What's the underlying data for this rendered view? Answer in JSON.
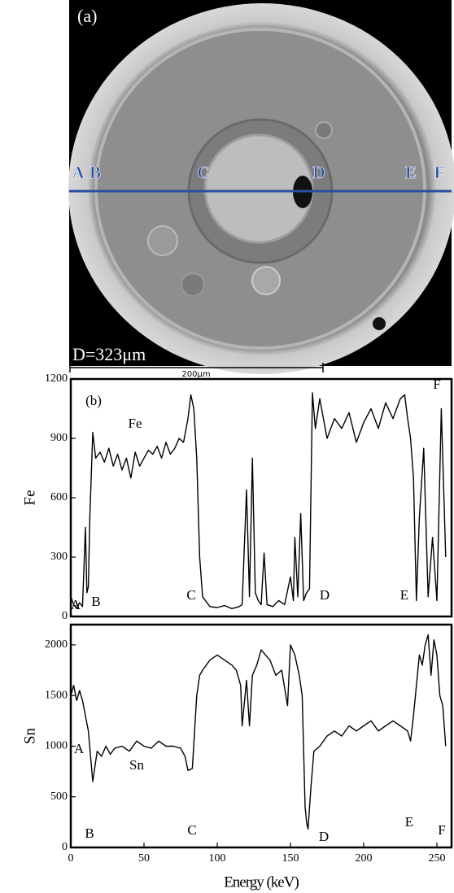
{
  "image": {
    "panel": "(a)",
    "diameter": "D=323μm",
    "scale_bar": "200μm",
    "line_labels": [
      "A",
      "B",
      "C",
      "D",
      "E",
      "F"
    ]
  },
  "chart_data": [
    {
      "type": "line",
      "ylabel": "Fe",
      "annotations": [
        "(b)",
        "A",
        "B",
        "C",
        "D",
        "E",
        "F"
      ],
      "xlim": [
        0,
        260
      ],
      "ylim": [
        0,
        1200
      ],
      "yticks": [
        0,
        300,
        600,
        900,
        1200
      ],
      "x": [
        0,
        2,
        4,
        6,
        8,
        10,
        11,
        12,
        13,
        15,
        17,
        20,
        23,
        26,
        29,
        32,
        35,
        38,
        41,
        44,
        47,
        50,
        53,
        56,
        59,
        62,
        65,
        68,
        71,
        74,
        77,
        80,
        82,
        84,
        86,
        88,
        90,
        95,
        100,
        105,
        110,
        115,
        117,
        120,
        122,
        124,
        126,
        128,
        130,
        132,
        134,
        138,
        142,
        146,
        150,
        152,
        153,
        155,
        157,
        159,
        161,
        163,
        165,
        167,
        170,
        175,
        180,
        185,
        190,
        195,
        200,
        205,
        210,
        215,
        220,
        225,
        228,
        230,
        232,
        234,
        236,
        238,
        241,
        244,
        247,
        250,
        253,
        256
      ],
      "series": [
        {
          "name": "Fe",
          "color": "#000000",
          "values": [
            100,
            60,
            40,
            70,
            50,
            450,
            120,
            150,
            500,
            930,
            800,
            830,
            780,
            850,
            760,
            820,
            740,
            800,
            700,
            830,
            760,
            800,
            840,
            820,
            860,
            800,
            880,
            820,
            850,
            900,
            880,
            1000,
            1120,
            1050,
            800,
            300,
            100,
            50,
            45,
            55,
            40,
            50,
            60,
            640,
            100,
            800,
            120,
            80,
            60,
            320,
            60,
            50,
            80,
            60,
            200,
            80,
            400,
            100,
            520,
            80,
            120,
            140,
            1130,
            950,
            1100,
            900,
            1000,
            950,
            1030,
            880,
            980,
            1050,
            950,
            1080,
            1000,
            1100,
            1120,
            1000,
            900,
            700,
            80,
            500,
            850,
            100,
            400,
            80,
            1050,
            300
          ]
        }
      ]
    },
    {
      "type": "line",
      "ylabel": "Sn",
      "xlabel": "Energy (keV)",
      "annotations": [
        "A",
        "B",
        "C",
        "D",
        "E",
        "F"
      ],
      "xlim": [
        0,
        260
      ],
      "ylim": [
        0,
        2200
      ],
      "xticks": [
        0,
        50,
        100,
        150,
        200,
        250
      ],
      "yticks": [
        0,
        500,
        1000,
        1500,
        2000
      ],
      "x": [
        0,
        2,
        4,
        6,
        8,
        10,
        12,
        15,
        18,
        21,
        24,
        27,
        30,
        35,
        40,
        45,
        50,
        55,
        60,
        65,
        70,
        75,
        78,
        80,
        83,
        86,
        88,
        90,
        95,
        100,
        105,
        110,
        113,
        116,
        117,
        119,
        120,
        122,
        124,
        127,
        130,
        133,
        136,
        140,
        144,
        148,
        150,
        153,
        156,
        158,
        160,
        161,
        162,
        164,
        166,
        170,
        175,
        180,
        185,
        190,
        195,
        200,
        205,
        210,
        215,
        220,
        225,
        230,
        232,
        234,
        236,
        238,
        240,
        242,
        244,
        246,
        248,
        250,
        252,
        254,
        256
      ],
      "series": [
        {
          "name": "Sn",
          "color": "#000000",
          "values": [
            1500,
            1600,
            1450,
            1550,
            1450,
            1300,
            1150,
            650,
            950,
            900,
            1000,
            920,
            980,
            1000,
            950,
            1050,
            1000,
            980,
            1050,
            1000,
            1000,
            980,
            900,
            760,
            780,
            1500,
            1700,
            1750,
            1850,
            1900,
            1850,
            1800,
            1750,
            1600,
            1200,
            1500,
            1650,
            1200,
            1700,
            1800,
            1950,
            1900,
            1850,
            1700,
            1750,
            1400,
            2000,
            1900,
            1700,
            1500,
            400,
            250,
            180,
            600,
            950,
            1000,
            1100,
            1150,
            1100,
            1200,
            1150,
            1200,
            1250,
            1150,
            1200,
            1250,
            1200,
            1150,
            1050,
            1300,
            1600,
            1900,
            1800,
            2000,
            2100,
            1700,
            2050,
            1900,
            1500,
            1400,
            1000
          ]
        }
      ]
    }
  ]
}
